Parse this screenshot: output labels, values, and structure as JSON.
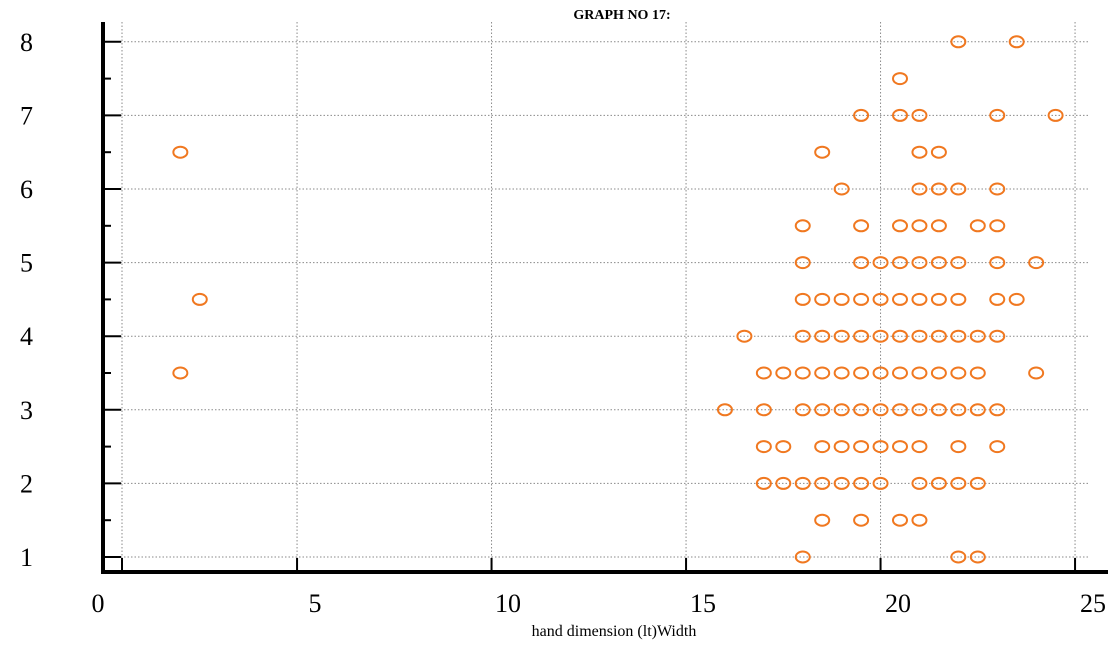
{
  "chart_data": {
    "type": "scatter",
    "title": "GRAPH NO 17:",
    "xlabel": "hand dimension (lt)Width",
    "ylabel": "",
    "xlim": [
      0,
      25
    ],
    "ylim": [
      1,
      8
    ],
    "x_ticks": [
      "0",
      "5",
      "10",
      "15",
      "20",
      "25"
    ],
    "y_ticks": [
      "1",
      "2",
      "3",
      "4",
      "5",
      "6",
      "7",
      "8"
    ],
    "grid": true,
    "marker_color": "#f07820",
    "series": [
      {
        "points": [
          [
            22,
            8
          ],
          [
            23.5,
            8
          ],
          [
            20.5,
            7.5
          ],
          [
            19.5,
            7
          ],
          [
            20.5,
            7
          ],
          [
            21,
            7
          ],
          [
            23,
            7
          ],
          [
            24.5,
            7
          ],
          [
            2,
            6.5
          ],
          [
            18.5,
            6.5
          ],
          [
            21,
            6.5
          ],
          [
            21.5,
            6.5
          ],
          [
            19,
            6
          ],
          [
            21,
            6
          ],
          [
            21.5,
            6
          ],
          [
            22,
            6
          ],
          [
            23,
            6
          ],
          [
            18,
            5.5
          ],
          [
            19.5,
            5.5
          ],
          [
            20.5,
            5.5
          ],
          [
            21,
            5.5
          ],
          [
            21.5,
            5.5
          ],
          [
            22.5,
            5.5
          ],
          [
            23,
            5.5
          ],
          [
            18,
            5
          ],
          [
            19.5,
            5
          ],
          [
            20,
            5
          ],
          [
            20.5,
            5
          ],
          [
            21,
            5
          ],
          [
            21.5,
            5
          ],
          [
            22,
            5
          ],
          [
            23,
            5
          ],
          [
            24,
            5
          ],
          [
            2.5,
            4.5
          ],
          [
            18,
            4.5
          ],
          [
            18.5,
            4.5
          ],
          [
            19,
            4.5
          ],
          [
            19.5,
            4.5
          ],
          [
            20,
            4.5
          ],
          [
            20.5,
            4.5
          ],
          [
            21,
            4.5
          ],
          [
            21.5,
            4.5
          ],
          [
            22,
            4.5
          ],
          [
            23,
            4.5
          ],
          [
            23.5,
            4.5
          ],
          [
            16.5,
            4
          ],
          [
            18,
            4
          ],
          [
            18.5,
            4
          ],
          [
            19,
            4
          ],
          [
            19.5,
            4
          ],
          [
            20,
            4
          ],
          [
            20.5,
            4
          ],
          [
            21,
            4
          ],
          [
            21.5,
            4
          ],
          [
            22,
            4
          ],
          [
            22.5,
            4
          ],
          [
            23,
            4
          ],
          [
            2,
            3.5
          ],
          [
            17,
            3.5
          ],
          [
            17.5,
            3.5
          ],
          [
            18,
            3.5
          ],
          [
            18.5,
            3.5
          ],
          [
            19,
            3.5
          ],
          [
            19.5,
            3.5
          ],
          [
            20,
            3.5
          ],
          [
            20.5,
            3.5
          ],
          [
            21,
            3.5
          ],
          [
            21.5,
            3.5
          ],
          [
            22,
            3.5
          ],
          [
            22.5,
            3.5
          ],
          [
            24,
            3.5
          ],
          [
            16,
            3
          ],
          [
            17,
            3
          ],
          [
            18,
            3
          ],
          [
            18.5,
            3
          ],
          [
            19,
            3
          ],
          [
            19.5,
            3
          ],
          [
            20,
            3
          ],
          [
            20.5,
            3
          ],
          [
            21,
            3
          ],
          [
            21.5,
            3
          ],
          [
            22,
            3
          ],
          [
            22.5,
            3
          ],
          [
            23,
            3
          ],
          [
            17,
            2.5
          ],
          [
            17.5,
            2.5
          ],
          [
            18.5,
            2.5
          ],
          [
            19,
            2.5
          ],
          [
            19.5,
            2.5
          ],
          [
            20,
            2.5
          ],
          [
            20.5,
            2.5
          ],
          [
            21,
            2.5
          ],
          [
            22,
            2.5
          ],
          [
            23,
            2.5
          ],
          [
            17,
            2
          ],
          [
            17.5,
            2
          ],
          [
            18,
            2
          ],
          [
            18.5,
            2
          ],
          [
            19,
            2
          ],
          [
            19.5,
            2
          ],
          [
            20,
            2
          ],
          [
            21,
            2
          ],
          [
            21.5,
            2
          ],
          [
            22,
            2
          ],
          [
            22.5,
            2
          ],
          [
            18.5,
            1.5
          ],
          [
            19.5,
            1.5
          ],
          [
            20.5,
            1.5
          ],
          [
            21,
            1.5
          ],
          [
            18,
            1
          ],
          [
            22,
            1
          ],
          [
            22.5,
            1
          ]
        ]
      }
    ]
  }
}
